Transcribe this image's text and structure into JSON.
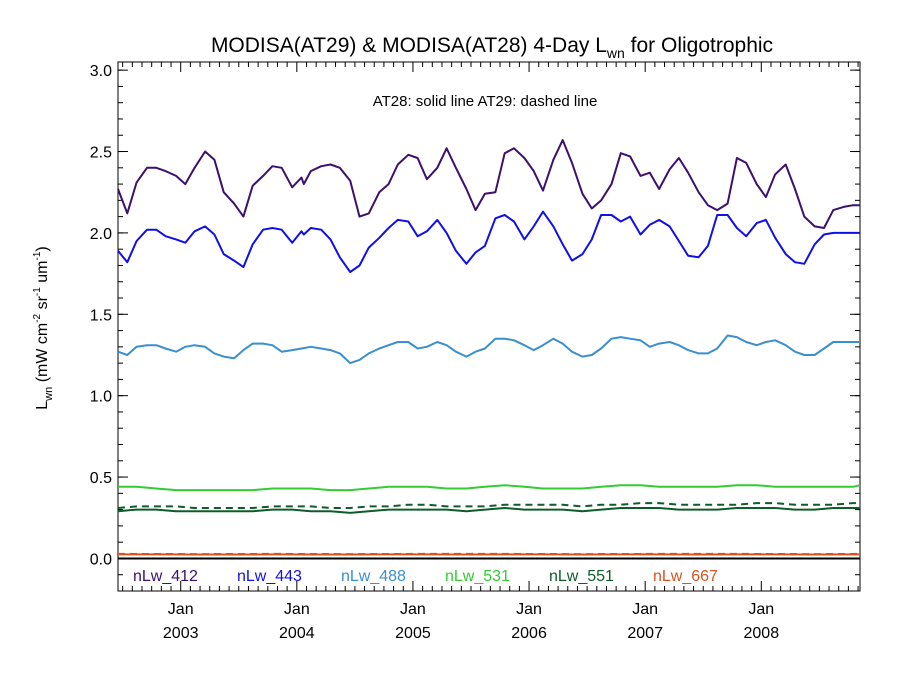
{
  "chart_data": {
    "type": "line",
    "title": {
      "pre": "MODISA(AT29) & MODISA(AT28) 4-Day L",
      "sub": "wn",
      "post": " for Oligotrophic"
    },
    "ylabel": {
      "L": "L",
      "L_sub": "wn",
      "mid": " (mW cm",
      "e1": "-2",
      "sr": " sr",
      "e2": "-1",
      "um": " um",
      "e3": "-1",
      "close": ")"
    },
    "annotation": "AT28: solid line   AT29: dashed line",
    "ylim": [
      -0.2,
      3.05
    ],
    "yticks": [
      "0.0",
      "0.5",
      "1.0",
      "1.5",
      "2.0",
      "2.5",
      "3.0"
    ],
    "xlim": [
      2002.46,
      2008.85
    ],
    "xticks": [
      {
        "month": "Jan",
        "year": "2003"
      },
      {
        "month": "Jan",
        "year": "2004"
      },
      {
        "month": "Jan",
        "year": "2005"
      },
      {
        "month": "Jan",
        "year": "2006"
      },
      {
        "month": "Jan",
        "year": "2007"
      },
      {
        "month": "Jan",
        "year": "2008"
      }
    ],
    "legend_placement": "bottom",
    "grid": false,
    "series": [
      {
        "name": "nLw_412",
        "color": "#3d0f6e",
        "x": [
          2002.46,
          2002.54,
          2002.62,
          2002.71,
          2002.79,
          2002.87,
          2002.96,
          2003.04,
          2003.12,
          2003.21,
          2003.29,
          2003.37,
          2003.46,
          2003.54,
          2003.62,
          2003.71,
          2003.79,
          2003.87,
          2003.96,
          2004.04,
          2004.06,
          2004.12,
          2004.21,
          2004.29,
          2004.37,
          2004.46,
          2004.54,
          2004.62,
          2004.71,
          2004.79,
          2004.87,
          2004.96,
          2005.04,
          2005.12,
          2005.21,
          2005.29,
          2005.37,
          2005.46,
          2005.54,
          2005.62,
          2005.71,
          2005.79,
          2005.87,
          2005.96,
          2006.04,
          2006.12,
          2006.21,
          2006.29,
          2006.37,
          2006.46,
          2006.54,
          2006.62,
          2006.71,
          2006.79,
          2006.87,
          2006.96,
          2007.04,
          2007.12,
          2007.21,
          2007.29,
          2007.37,
          2007.46,
          2007.54,
          2007.62,
          2007.71,
          2007.79,
          2007.87,
          2007.96,
          2008.04,
          2008.12,
          2008.21,
          2008.29,
          2008.37,
          2008.46,
          2008.54,
          2008.62,
          2008.71,
          2008.79,
          2008.85
        ],
        "y": [
          2.27,
          2.12,
          2.31,
          2.4,
          2.4,
          2.38,
          2.35,
          2.3,
          2.4,
          2.5,
          2.45,
          2.25,
          2.18,
          2.1,
          2.29,
          2.35,
          2.41,
          2.4,
          2.28,
          2.34,
          2.3,
          2.38,
          2.41,
          2.42,
          2.4,
          2.32,
          2.1,
          2.12,
          2.25,
          2.3,
          2.42,
          2.48,
          2.46,
          2.33,
          2.4,
          2.52,
          2.4,
          2.27,
          2.14,
          2.24,
          2.25,
          2.49,
          2.52,
          2.46,
          2.38,
          2.26,
          2.45,
          2.57,
          2.43,
          2.24,
          2.15,
          2.2,
          2.3,
          2.49,
          2.47,
          2.35,
          2.37,
          2.27,
          2.39,
          2.46,
          2.37,
          2.25,
          2.17,
          2.14,
          2.18,
          2.46,
          2.43,
          2.3,
          2.22,
          2.36,
          2.42,
          2.27,
          2.1,
          2.04,
          2.03,
          2.14,
          2.16,
          2.17,
          2.17
        ]
      },
      {
        "name": "nLw_443",
        "color": "#1010e6",
        "x": [
          2002.46,
          2002.54,
          2002.62,
          2002.71,
          2002.79,
          2002.87,
          2002.96,
          2003.04,
          2003.12,
          2003.21,
          2003.29,
          2003.37,
          2003.46,
          2003.54,
          2003.62,
          2003.71,
          2003.79,
          2003.87,
          2003.96,
          2004.04,
          2004.06,
          2004.12,
          2004.21,
          2004.29,
          2004.37,
          2004.46,
          2004.54,
          2004.62,
          2004.71,
          2004.79,
          2004.87,
          2004.96,
          2005.04,
          2005.12,
          2005.21,
          2005.29,
          2005.37,
          2005.46,
          2005.54,
          2005.62,
          2005.71,
          2005.79,
          2005.87,
          2005.96,
          2006.04,
          2006.12,
          2006.21,
          2006.29,
          2006.37,
          2006.46,
          2006.54,
          2006.62,
          2006.71,
          2006.79,
          2006.87,
          2006.96,
          2007.04,
          2007.12,
          2007.21,
          2007.29,
          2007.37,
          2007.46,
          2007.54,
          2007.62,
          2007.71,
          2007.79,
          2007.87,
          2007.96,
          2008.04,
          2008.12,
          2008.21,
          2008.29,
          2008.37,
          2008.46,
          2008.54,
          2008.62,
          2008.71,
          2008.79,
          2008.85
        ],
        "y": [
          1.89,
          1.82,
          1.95,
          2.02,
          2.02,
          1.98,
          1.96,
          1.94,
          2.01,
          2.04,
          1.99,
          1.87,
          1.83,
          1.79,
          1.93,
          2.02,
          2.03,
          2.02,
          1.94,
          2.01,
          1.99,
          2.03,
          2.02,
          1.96,
          1.85,
          1.76,
          1.8,
          1.91,
          1.97,
          2.03,
          2.08,
          2.07,
          1.98,
          2.01,
          2.08,
          2.0,
          1.89,
          1.81,
          1.88,
          1.92,
          2.09,
          2.11,
          2.07,
          1.96,
          2.04,
          2.13,
          2.04,
          1.93,
          1.83,
          1.87,
          1.96,
          2.11,
          2.11,
          2.07,
          2.1,
          1.99,
          2.05,
          2.08,
          2.04,
          1.95,
          1.86,
          1.85,
          1.92,
          2.11,
          2.11,
          2.03,
          1.98,
          2.06,
          2.08,
          1.97,
          1.87,
          1.82,
          1.81,
          1.93,
          1.99,
          2.0,
          2.0,
          2.0,
          2.0
        ]
      },
      {
        "name": "nLw_488",
        "color": "#3a8fcf",
        "x": [
          2002.46,
          2002.54,
          2002.62,
          2002.71,
          2002.79,
          2002.87,
          2002.96,
          2003.04,
          2003.12,
          2003.21,
          2003.29,
          2003.37,
          2003.46,
          2003.54,
          2003.62,
          2003.71,
          2003.79,
          2003.87,
          2003.96,
          2004.04,
          2004.12,
          2004.21,
          2004.29,
          2004.37,
          2004.46,
          2004.54,
          2004.62,
          2004.71,
          2004.79,
          2004.87,
          2004.96,
          2005.04,
          2005.12,
          2005.21,
          2005.29,
          2005.37,
          2005.46,
          2005.54,
          2005.62,
          2005.71,
          2005.79,
          2005.87,
          2005.96,
          2006.04,
          2006.12,
          2006.21,
          2006.29,
          2006.37,
          2006.46,
          2006.54,
          2006.62,
          2006.71,
          2006.79,
          2006.87,
          2006.96,
          2007.04,
          2007.12,
          2007.21,
          2007.29,
          2007.37,
          2007.46,
          2007.54,
          2007.62,
          2007.71,
          2007.79,
          2007.87,
          2007.96,
          2008.04,
          2008.12,
          2008.21,
          2008.29,
          2008.37,
          2008.46,
          2008.54,
          2008.62,
          2008.71,
          2008.79,
          2008.85
        ],
        "y": [
          1.27,
          1.25,
          1.3,
          1.31,
          1.31,
          1.29,
          1.27,
          1.3,
          1.31,
          1.3,
          1.26,
          1.24,
          1.23,
          1.28,
          1.32,
          1.32,
          1.31,
          1.27,
          1.28,
          1.29,
          1.3,
          1.29,
          1.28,
          1.26,
          1.2,
          1.22,
          1.26,
          1.29,
          1.31,
          1.33,
          1.33,
          1.29,
          1.3,
          1.33,
          1.31,
          1.27,
          1.24,
          1.27,
          1.29,
          1.35,
          1.35,
          1.34,
          1.31,
          1.28,
          1.31,
          1.35,
          1.32,
          1.27,
          1.24,
          1.25,
          1.29,
          1.35,
          1.36,
          1.35,
          1.34,
          1.3,
          1.32,
          1.33,
          1.31,
          1.28,
          1.26,
          1.26,
          1.29,
          1.37,
          1.36,
          1.33,
          1.31,
          1.33,
          1.34,
          1.31,
          1.27,
          1.25,
          1.25,
          1.29,
          1.33,
          1.33,
          1.33,
          1.33
        ]
      },
      {
        "name": "nLw_531",
        "color": "#33cc33",
        "x": [
          2002.46,
          2002.62,
          2002.79,
          2002.96,
          2003.12,
          2003.29,
          2003.46,
          2003.62,
          2003.79,
          2003.96,
          2004.12,
          2004.29,
          2004.46,
          2004.62,
          2004.79,
          2004.96,
          2005.12,
          2005.29,
          2005.46,
          2005.62,
          2005.79,
          2005.96,
          2006.12,
          2006.29,
          2006.46,
          2006.62,
          2006.79,
          2006.96,
          2007.12,
          2007.29,
          2007.46,
          2007.62,
          2007.79,
          2007.96,
          2008.12,
          2008.29,
          2008.46,
          2008.62,
          2008.79,
          2008.85
        ],
        "y": [
          0.44,
          0.44,
          0.43,
          0.42,
          0.42,
          0.42,
          0.42,
          0.42,
          0.43,
          0.43,
          0.43,
          0.42,
          0.42,
          0.43,
          0.44,
          0.44,
          0.44,
          0.43,
          0.43,
          0.44,
          0.45,
          0.44,
          0.43,
          0.43,
          0.43,
          0.44,
          0.45,
          0.45,
          0.44,
          0.44,
          0.44,
          0.44,
          0.45,
          0.45,
          0.44,
          0.44,
          0.44,
          0.44,
          0.44,
          0.45
        ]
      },
      {
        "name": "nLw_551",
        "color": "#0d5c2a",
        "x": [
          2002.46,
          2002.62,
          2002.79,
          2002.96,
          2003.12,
          2003.29,
          2003.46,
          2003.62,
          2003.79,
          2003.96,
          2004.12,
          2004.29,
          2004.46,
          2004.62,
          2004.79,
          2004.96,
          2005.12,
          2005.29,
          2005.46,
          2005.62,
          2005.79,
          2005.96,
          2006.12,
          2006.29,
          2006.46,
          2006.62,
          2006.79,
          2006.96,
          2007.12,
          2007.29,
          2007.46,
          2007.62,
          2007.79,
          2007.96,
          2008.12,
          2008.29,
          2008.46,
          2008.62,
          2008.79,
          2008.85
        ],
        "y": [
          0.29,
          0.3,
          0.3,
          0.29,
          0.29,
          0.29,
          0.29,
          0.29,
          0.3,
          0.3,
          0.29,
          0.29,
          0.28,
          0.29,
          0.3,
          0.3,
          0.3,
          0.3,
          0.29,
          0.3,
          0.31,
          0.3,
          0.3,
          0.3,
          0.29,
          0.3,
          0.31,
          0.31,
          0.31,
          0.3,
          0.3,
          0.3,
          0.31,
          0.31,
          0.31,
          0.3,
          0.3,
          0.31,
          0.31,
          0.31
        ]
      },
      {
        "name": "nLw_667",
        "color": "#d9531e",
        "x": [
          2002.46,
          2002.79,
          2003.12,
          2003.46,
          2003.79,
          2004.12,
          2004.46,
          2004.79,
          2005.12,
          2005.46,
          2005.79,
          2006.12,
          2006.46,
          2006.79,
          2007.12,
          2007.46,
          2007.79,
          2008.12,
          2008.46,
          2008.85
        ],
        "y": [
          0.025,
          0.025,
          0.024,
          0.024,
          0.025,
          0.024,
          0.024,
          0.025,
          0.025,
          0.024,
          0.025,
          0.025,
          0.024,
          0.025,
          0.025,
          0.024,
          0.025,
          0.025,
          0.024,
          0.025
        ]
      }
    ],
    "dashed_series": [
      {
        "name": "AT29 nLw_551",
        "color": "#0d5c2a",
        "x": [
          2002.46,
          2002.62,
          2002.79,
          2002.96,
          2003.12,
          2003.29,
          2003.46,
          2003.62,
          2003.79,
          2003.96,
          2004.12,
          2004.29,
          2004.46,
          2004.62,
          2004.79,
          2004.96,
          2005.12,
          2005.29,
          2005.46,
          2005.62,
          2005.79,
          2005.96,
          2006.12,
          2006.29,
          2006.46,
          2006.62,
          2006.79,
          2006.96,
          2007.12,
          2007.29,
          2007.46,
          2007.62,
          2007.79,
          2007.96,
          2008.12,
          2008.29,
          2008.46,
          2008.62,
          2008.79,
          2008.85
        ],
        "y": [
          0.31,
          0.32,
          0.32,
          0.32,
          0.31,
          0.31,
          0.31,
          0.31,
          0.32,
          0.32,
          0.32,
          0.31,
          0.31,
          0.32,
          0.32,
          0.33,
          0.33,
          0.32,
          0.32,
          0.32,
          0.33,
          0.33,
          0.33,
          0.33,
          0.32,
          0.33,
          0.33,
          0.34,
          0.34,
          0.33,
          0.33,
          0.33,
          0.33,
          0.34,
          0.34,
          0.33,
          0.33,
          0.33,
          0.34,
          0.34
        ]
      },
      {
        "name": "AT29 nLw_667",
        "color": "#d9531e",
        "x": [
          2002.46,
          2003.12,
          2003.79,
          2004.46,
          2005.12,
          2005.79,
          2006.46,
          2007.12,
          2007.79,
          2008.46,
          2008.85
        ],
        "y": [
          0.028,
          0.027,
          0.028,
          0.027,
          0.028,
          0.028,
          0.027,
          0.028,
          0.028,
          0.027,
          0.028
        ]
      }
    ],
    "zero_line": {
      "color": "#000000"
    }
  }
}
